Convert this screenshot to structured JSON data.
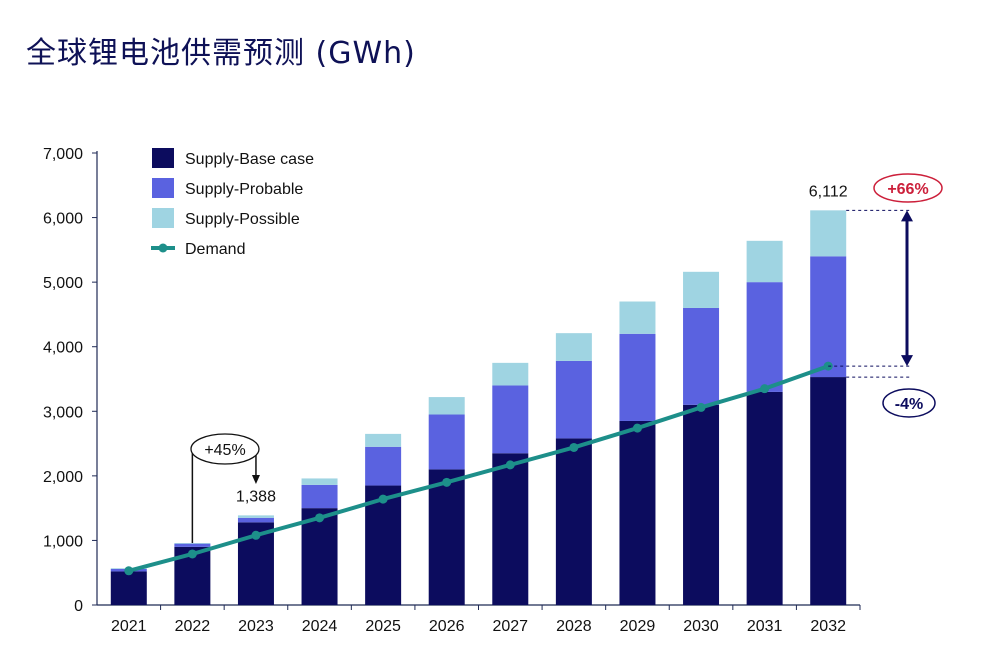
{
  "title": "全球锂电池供需预测 (GWh)",
  "colors": {
    "base": "#0c0c5e",
    "probable": "#5a62e0",
    "possible": "#9fd4e2",
    "demand": "#1d8f8a",
    "axis": "#1f2a55",
    "highlight": "#cc1f3a"
  },
  "annotations": {
    "growth_2023": "+45%",
    "value_2023": "1,388",
    "value_2032": "6,112",
    "supply_gap": "+66%",
    "demand_gap": "-4%"
  },
  "chart_data": {
    "type": "bar",
    "categories": [
      "2021",
      "2022",
      "2023",
      "2024",
      "2025",
      "2026",
      "2027",
      "2028",
      "2029",
      "2030",
      "2031",
      "2032"
    ],
    "series": [
      {
        "name": "Supply-Base case",
        "values": [
          520,
          900,
          1280,
          1500,
          1850,
          2100,
          2350,
          2580,
          2850,
          3100,
          3300,
          3530
        ]
      },
      {
        "name": "Supply-Probable",
        "values": [
          40,
          50,
          70,
          360,
          600,
          850,
          1050,
          1200,
          1350,
          1500,
          1700,
          1870
        ]
      },
      {
        "name": "Supply-Possible",
        "values": [
          10,
          10,
          38,
          100,
          200,
          270,
          350,
          430,
          500,
          560,
          640,
          712
        ]
      },
      {
        "name": "Demand",
        "type": "line",
        "values": [
          530,
          790,
          1080,
          1350,
          1640,
          1900,
          2170,
          2440,
          2740,
          3060,
          3350,
          3700
        ]
      }
    ],
    "yticks": [
      "0",
      "1,000",
      "2,000",
      "3,000",
      "4,000",
      "5,000",
      "6,000",
      "7,000"
    ],
    "ylim": [
      0,
      7000
    ],
    "legend": "top-left",
    "grid": false
  }
}
